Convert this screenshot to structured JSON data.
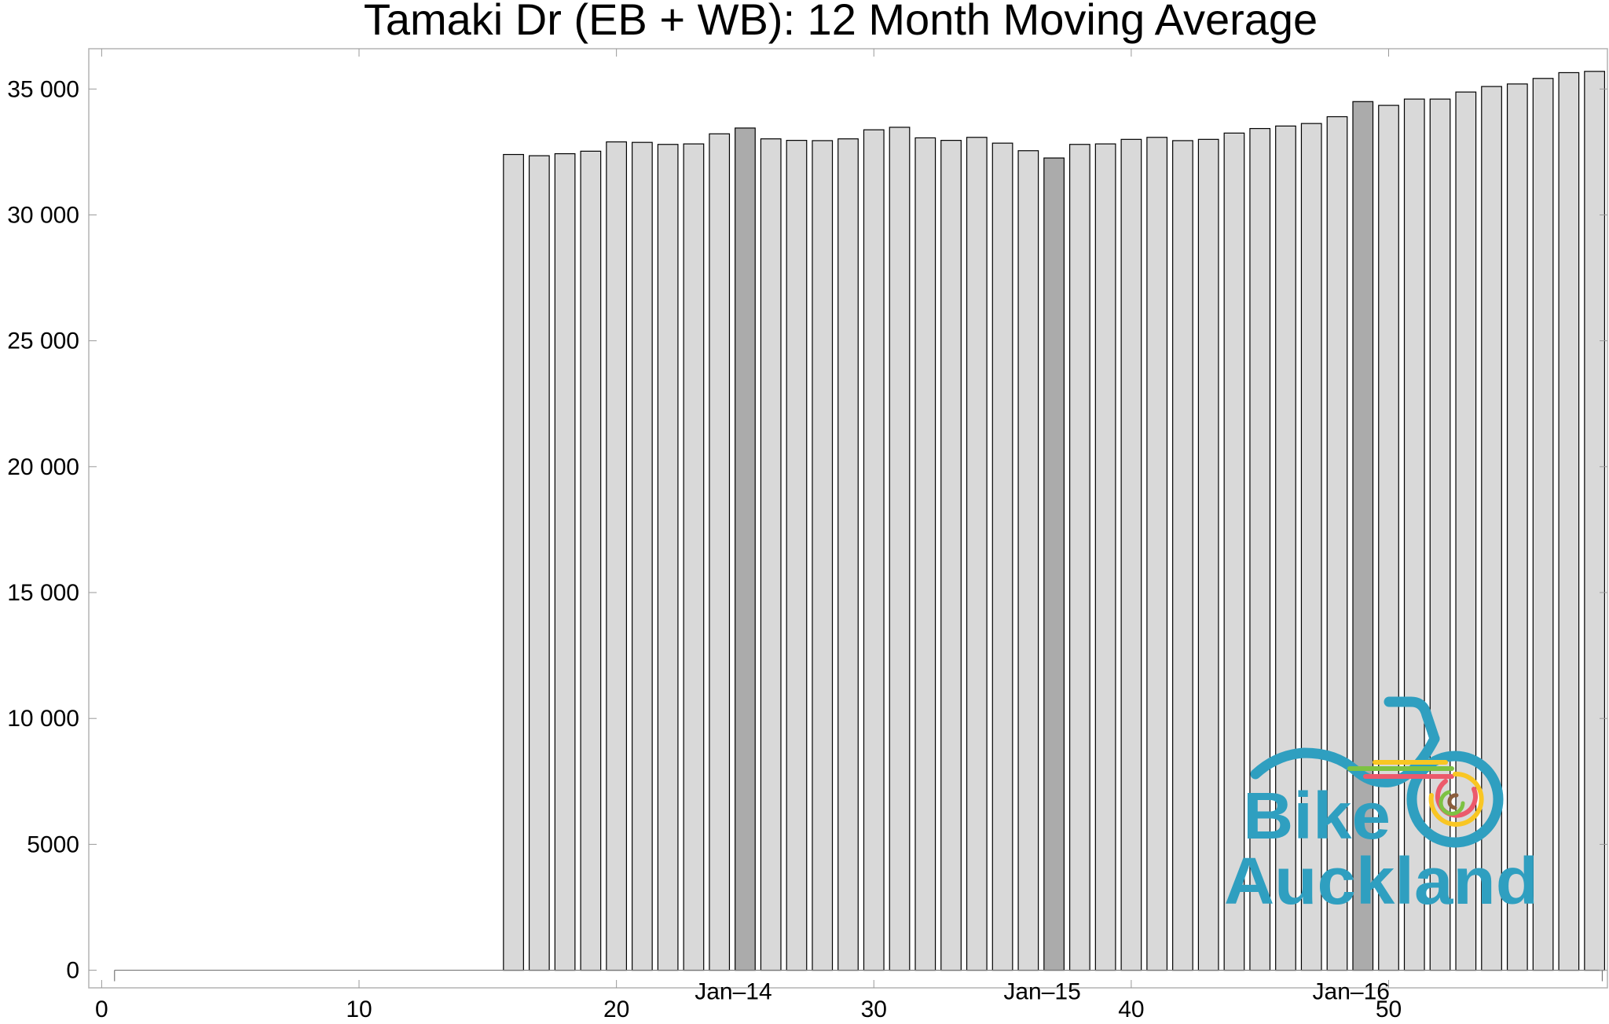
{
  "chart_data": {
    "type": "bar",
    "title": "Tamaki Dr (EB + WB): 12 Month Moving Average",
    "xlabel": "",
    "ylabel": "",
    "xlim": [
      -0.5,
      58.5
    ],
    "ylim": [
      -700,
      36600
    ],
    "x_ticks": [
      0,
      10,
      20,
      30,
      40,
      50
    ],
    "y_ticks": [
      {
        "value": 0,
        "label": "0"
      },
      {
        "value": 5000,
        "label": "5000"
      },
      {
        "value": 10000,
        "label": "10 000"
      },
      {
        "value": 15000,
        "label": "15 000"
      },
      {
        "value": 20000,
        "label": "20 000"
      },
      {
        "value": 25000,
        "label": "25 000"
      },
      {
        "value": 30000,
        "label": "30 000"
      },
      {
        "value": 35000,
        "label": "35 000"
      }
    ],
    "month_markers": [
      {
        "x": 25,
        "label": "Jan–14"
      },
      {
        "x": 37,
        "label": "Jan–15"
      },
      {
        "x": 49,
        "label": "Jan–16"
      }
    ],
    "x": [
      16,
      17,
      18,
      19,
      20,
      21,
      22,
      23,
      24,
      25,
      26,
      27,
      28,
      29,
      30,
      31,
      32,
      33,
      34,
      35,
      36,
      37,
      38,
      39,
      40,
      41,
      42,
      43,
      44,
      45,
      46,
      47,
      48,
      49,
      50,
      51,
      52,
      53,
      54,
      55,
      56,
      57,
      58
    ],
    "values": [
      32400,
      32350,
      32430,
      32530,
      32900,
      32880,
      32800,
      32820,
      33220,
      33450,
      33020,
      32960,
      32950,
      33020,
      33380,
      33480,
      33060,
      32960,
      33080,
      32850,
      32550,
      32260,
      32800,
      32820,
      33000,
      33080,
      32950,
      33000,
      33250,
      33430,
      33530,
      33630,
      33900,
      34500,
      34350,
      34600,
      34600,
      34880,
      35100,
      35200,
      35420,
      35650,
      35700
    ],
    "highlight_x": [
      25,
      37,
      49
    ],
    "colors": {
      "bar": "#d9d9d9",
      "bar_highlight": "#ababab",
      "bar_stroke": "#000000",
      "frame": "#b3b3b3"
    },
    "grid": false,
    "legend": "none"
  },
  "logo": {
    "line1": "Bike",
    "line2": "Auckland",
    "color": "#2f9fc0",
    "accent_colors": [
      "#7dc243",
      "#f9c623",
      "#ec5a6b",
      "#8b5e3c"
    ]
  }
}
